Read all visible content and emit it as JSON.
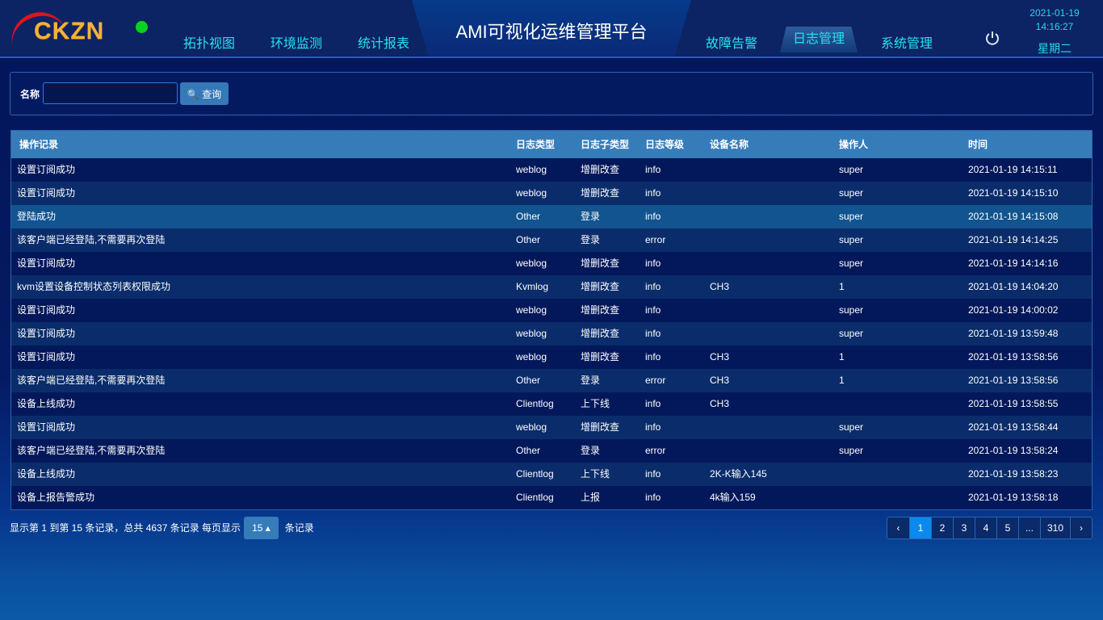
{
  "header": {
    "logo_text": "CKZN",
    "title": "AMI可视化运维管理平台",
    "nav_left": [
      "拓扑视图",
      "环境监测",
      "统计报表"
    ],
    "nav_right": [
      "故障告警",
      "日志管理",
      "系统管理"
    ],
    "active_nav": "日志管理",
    "date": "2021-01-19",
    "time": "14:16:27",
    "weekday": "星期二"
  },
  "search": {
    "label": "名称",
    "value": "",
    "button": "查询"
  },
  "table": {
    "columns": [
      "操作记录",
      "日志类型",
      "日志子类型",
      "日志等级",
      "设备名称",
      "操作人",
      "时间"
    ],
    "rows": [
      [
        "设置订阅成功",
        "weblog",
        "增删改查",
        "info",
        "",
        "super",
        "2021-01-19 14:15:11"
      ],
      [
        "设置订阅成功",
        "weblog",
        "增删改查",
        "info",
        "",
        "super",
        "2021-01-19 14:15:10"
      ],
      [
        "登陆成功",
        "Other",
        "登录",
        "info",
        "",
        "super",
        "2021-01-19 14:15:08"
      ],
      [
        "该客户端已经登陆,不需要再次登陆",
        "Other",
        "登录",
        "error",
        "",
        "super",
        "2021-01-19 14:14:25"
      ],
      [
        "设置订阅成功",
        "weblog",
        "增删改查",
        "info",
        "",
        "super",
        "2021-01-19 14:14:16"
      ],
      [
        "kvm设置设备控制状态列表权限成功",
        "Kvmlog",
        "增删改查",
        "info",
        "CH3",
        "1",
        "2021-01-19 14:04:20"
      ],
      [
        "设置订阅成功",
        "weblog",
        "增删改查",
        "info",
        "",
        "super",
        "2021-01-19 14:00:02"
      ],
      [
        "设置订阅成功",
        "weblog",
        "增删改查",
        "info",
        "",
        "super",
        "2021-01-19 13:59:48"
      ],
      [
        "设置订阅成功",
        "weblog",
        "增删改查",
        "info",
        "CH3",
        "1",
        "2021-01-19 13:58:56"
      ],
      [
        "该客户端已经登陆,不需要再次登陆",
        "Other",
        "登录",
        "error",
        "CH3",
        "1",
        "2021-01-19 13:58:56"
      ],
      [
        "设备上线成功",
        "Clientlog",
        "上下线",
        "info",
        "CH3",
        "",
        "2021-01-19 13:58:55"
      ],
      [
        "设置订阅成功",
        "weblog",
        "增删改查",
        "info",
        "",
        "super",
        "2021-01-19 13:58:44"
      ],
      [
        "该客户端已经登陆,不需要再次登陆",
        "Other",
        "登录",
        "error",
        "",
        "super",
        "2021-01-19 13:58:24"
      ],
      [
        "设备上线成功",
        "Clientlog",
        "上下线",
        "info",
        "2K-K输入145",
        "",
        "2021-01-19 13:58:23"
      ],
      [
        "设备上报告警成功",
        "Clientlog",
        "上报",
        "info",
        "4k输入159",
        "",
        "2021-01-19 13:58:18"
      ]
    ],
    "selected_row": 2
  },
  "footer": {
    "info": "显示第 1 到第 15 条记录，总共 4637 条记录  每页显示",
    "page_size": "15",
    "suffix": "条记录"
  },
  "pager": {
    "prev": "‹",
    "pages": [
      "1",
      "2",
      "3",
      "4",
      "5",
      "...",
      "310"
    ],
    "current": "1",
    "next": "›"
  }
}
